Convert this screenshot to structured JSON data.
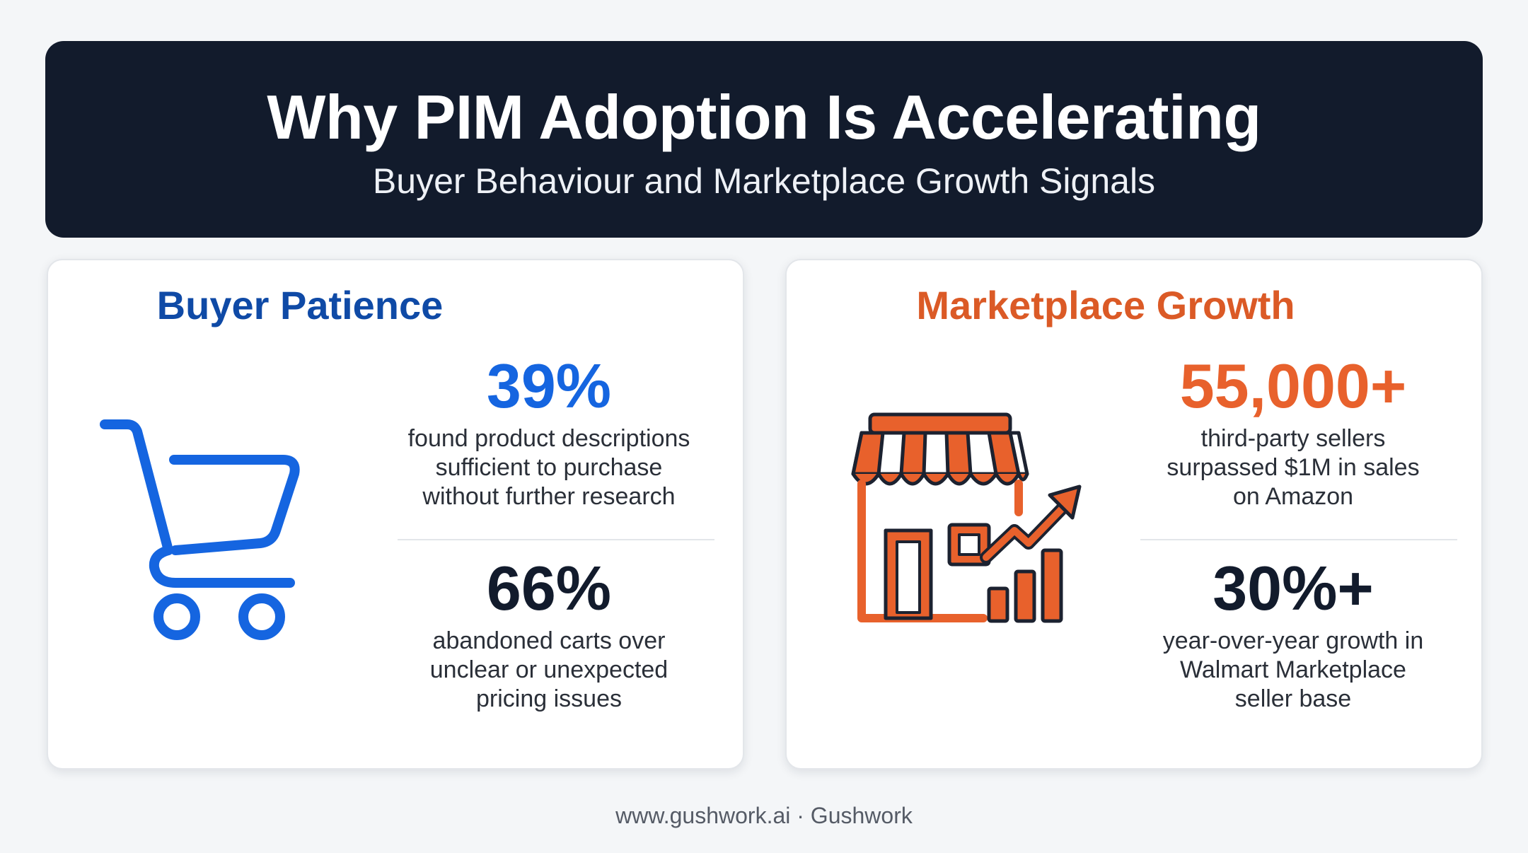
{
  "header": {
    "title": "Why PIM Adoption Is Accelerating",
    "subtitle": "Buyer Behaviour and Marketplace Growth Signals"
  },
  "cards": [
    {
      "title": "Buyer Patience",
      "icon": "shopping-cart-icon",
      "accent": "#1565e0",
      "stats": [
        {
          "value": "39%",
          "color": "#1565e0",
          "lines": [
            "found product descriptions",
            "sufficient to purchase",
            "without further research"
          ]
        },
        {
          "value": "66%",
          "color": "#121b2c",
          "lines": [
            "abandoned carts over",
            "unclear or unexpected",
            "pricing issues"
          ]
        }
      ]
    },
    {
      "title": "Marketplace Growth",
      "icon": "storefront-growth-icon",
      "accent": "#e8612c",
      "stats": [
        {
          "value": "55,000+",
          "color": "#e8612c",
          "lines": [
            "third-party sellers",
            "surpassed $1M in sales",
            "on Amazon"
          ]
        },
        {
          "value": "30%+",
          "color": "#121b2c",
          "lines": [
            "year-over-year growth in",
            "Walmart Marketplace",
            "seller base"
          ]
        }
      ]
    }
  ],
  "footer": "www.gushwork.ai · Gushwork"
}
